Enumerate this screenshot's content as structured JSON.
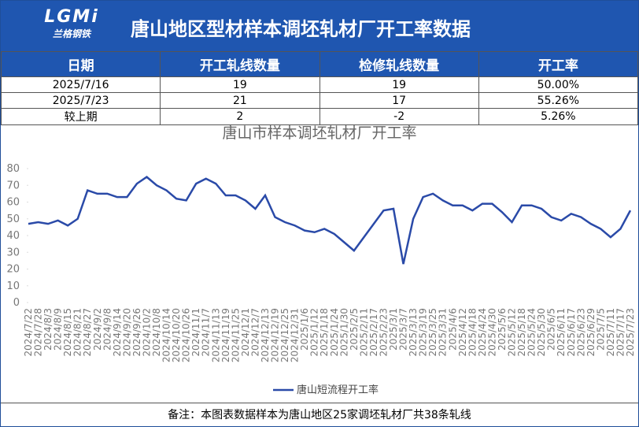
{
  "header": {
    "logo_text": "LGMi",
    "logo_subtitle": "兰格钢铁",
    "title": "唐山地区型材样本调坯轧材厂开工率数据"
  },
  "table": {
    "columns": [
      "日期",
      "开工轧线数量",
      "检修轧线数量",
      "开工率"
    ],
    "rows": [
      [
        "2025/7/16",
        "19",
        "19",
        "50.00%"
      ],
      [
        "2025/7/23",
        "21",
        "17",
        "55.26%"
      ],
      [
        "较上期",
        "2",
        "-2",
        "5.26%"
      ]
    ]
  },
  "chart_data": {
    "type": "line",
    "title": "唐山市样本调坯轧材厂开工率",
    "categories": [
      "2024/7/22",
      "2024/7/28",
      "2024/8/3",
      "2024/8/9",
      "2024/8/15",
      "2024/8/21",
      "2024/8/27",
      "2024/9/2",
      "2024/9/8",
      "2024/9/14",
      "2024/9/20",
      "2024/9/26",
      "2024/10/2",
      "2024/10/8",
      "2024/10/14",
      "2024/10/20",
      "2024/10/26",
      "2024/11/1",
      "2024/11/7",
      "2024/11/13",
      "2024/11/19",
      "2024/11/25",
      "2024/12/1",
      "2024/12/7",
      "2024/12/13",
      "2024/12/19",
      "2024/12/25",
      "2024/12/31",
      "2025/1/6",
      "2025/1/12",
      "2025/1/18",
      "2025/1/24",
      "2025/1/30",
      "2025/2/5",
      "2025/2/11",
      "2025/2/17",
      "2025/2/23",
      "2025/3/1",
      "2025/3/7",
      "2025/3/13",
      "2025/3/19",
      "2025/3/25",
      "2025/3/31",
      "2025/4/6",
      "2025/4/12",
      "2025/4/18",
      "2025/4/24",
      "2025/4/30",
      "2025/5/6",
      "2025/5/12",
      "2025/5/18",
      "2025/5/24",
      "2025/5/30",
      "2025/6/5",
      "2025/6/11",
      "2025/6/17",
      "2025/6/23",
      "2025/6/29",
      "2025/7/5",
      "2025/7/11",
      "2025/7/17",
      "2025/7/23"
    ],
    "series": [
      {
        "name": "唐山短流程开工率",
        "color": "#2a4aa8",
        "values": [
          47,
          48,
          47,
          49,
          46,
          50,
          67,
          65,
          65,
          63,
          63,
          71,
          75,
          70,
          67,
          62,
          61,
          71,
          74,
          71,
          64,
          64,
          61,
          56,
          64,
          51,
          48,
          46,
          43,
          42,
          44,
          41,
          36,
          31,
          39,
          47,
          55,
          56,
          23,
          50,
          63,
          65,
          61,
          58,
          58,
          55,
          59,
          59,
          54,
          48,
          58,
          58,
          56,
          51,
          49,
          53,
          51,
          47,
          44,
          39,
          44,
          55
        ]
      }
    ],
    "ylim": [
      0,
      80
    ],
    "yticks": [
      0,
      10,
      20,
      30,
      40,
      50,
      60,
      70,
      80
    ],
    "legend": "bottom"
  },
  "footnote": "备注：本图表数据样本为唐山地区25家调坯轧材厂共38条轧线"
}
